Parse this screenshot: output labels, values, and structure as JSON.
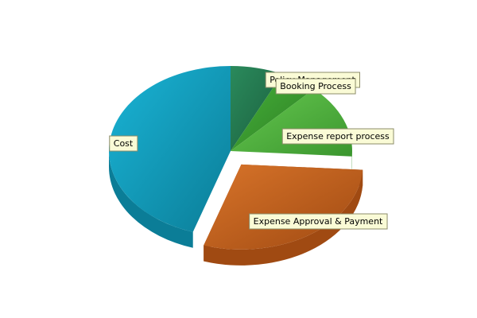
{
  "chart_data": {
    "type": "pie",
    "style": "3d",
    "title": "",
    "legend": "none",
    "slices": [
      {
        "name": "Policy Management",
        "value": 7,
        "color": "#2a8a5c",
        "side": "#1b5e3d"
      },
      {
        "name": "Booking Process",
        "value": 5,
        "color": "#46b33a",
        "side": "#2e7d24"
      },
      {
        "name": "Expense report process",
        "value": 14,
        "color": "#66c850",
        "side": "#3b962e"
      },
      {
        "name": "Expense Approval & Payment",
        "value": 29,
        "color": "#d8742a",
        "side": "#a04a12",
        "exploded": true
      },
      {
        "name": "Cost",
        "value": 45,
        "color": "#1ab4d6",
        "side": "#0b7d97"
      }
    ]
  }
}
